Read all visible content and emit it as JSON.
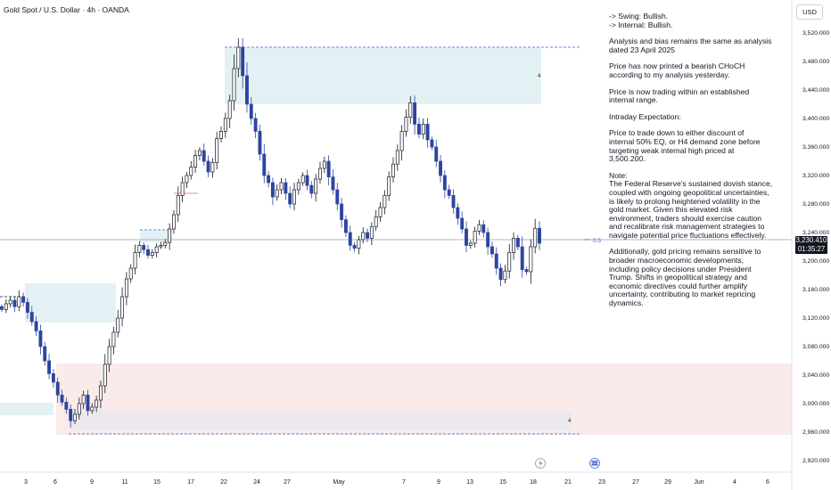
{
  "header": {
    "symbol": "Gold Spot / U.S. Dollar · 4h · OANDA"
  },
  "axis": {
    "currency": "USD",
    "price_ticks": [
      "3,520.000",
      "3,480.000",
      "3,440.000",
      "3,400.000",
      "3,360.000",
      "3,320.000",
      "3,280.000",
      "3,240.000",
      "3,200.000",
      "3,160.000",
      "3,120.000",
      "3,080.000",
      "3,040.000",
      "3,000.000",
      "2,960.000",
      "2,920.000"
    ],
    "date_ticks": [
      "3",
      "6",
      "9",
      "11",
      "15",
      "17",
      "22",
      "24",
      "27",
      "May",
      "7",
      "9",
      "13",
      "15",
      "18",
      "21",
      "23",
      "27",
      "29",
      "Jun",
      "4",
      "6"
    ]
  },
  "current_price": {
    "value": "3,230.410",
    "countdown": "01:35:27"
  },
  "fib_label": "0.5",
  "zone_labels": [
    "4",
    "4"
  ],
  "notes": [
    "-> Swing:  Bullish.",
    "-> Internal:  Bullish.",
    "",
    "Analysis and bias remains the same as analysis",
    "dated 23 April 2025",
    "",
    "Price has now printed a bearish CHoCH",
    "according to my analysis yesterday.",
    "",
    "Price is now trading within an established",
    "internal range.",
    "",
    "Intraday Expectation:",
    "",
    "Price to trade down to either discount of",
    "internal 50% EQ, or H4 demand zone before",
    "targeting weak internal high priced at",
    "3,500.200.",
    "",
    "Note:",
    "The Federal Reserve's sustained dovish stance,",
    "coupled with ongoing geopolitical uncertainties,",
    "is likely to prolong heightened volatility in the",
    "gold market. Given this elevated risk",
    "environment, traders should exercise caution",
    "and recalibrate risk management strategies to",
    "navigate potential price fluctuations effectively.",
    "",
    "Additionally, gold pricing remains sensitive to",
    "broader macroeconomic developments,",
    "including policy decisions under President",
    "Trump. Shifts in geopolitical strategy and",
    "economic directives could further amplify",
    "uncertainty, contributing to market repricing",
    "dynamics."
  ],
  "colors": {
    "up_candle": "#131722",
    "down_candle": "#2c45a0",
    "supply_zone": "#e4f1f4",
    "demand_zone": "#fbeaea",
    "demand_overlap": "#ebe9ee",
    "dashed_line": "#3d5fd8",
    "price_line": "#9aa0aa"
  },
  "chart_data": {
    "type": "candlestick",
    "timeframe": "4h",
    "x_unit": "session index from left edge",
    "ylim": [
      2905,
      3540
    ],
    "key_levels": {
      "weak_internal_high": 3500.2,
      "swing_low": 2956,
      "fib_0.5": 3230
    },
    "supply_zone": {
      "top": 3500,
      "bottom": 3417
    },
    "demand_zone": {
      "top": 3057,
      "bottom": 2956
    },
    "closes": [
      3132,
      3140,
      3145,
      3136,
      3150,
      3142,
      3128,
      3115,
      3102,
      3080,
      3060,
      3042,
      3030,
      3012,
      3002,
      2992,
      2976,
      2985,
      3000,
      3012,
      2990,
      2995,
      3005,
      3025,
      3055,
      3080,
      3100,
      3120,
      3150,
      3175,
      3190,
      3212,
      3222,
      3216,
      3208,
      3212,
      3220,
      3222,
      3226,
      3245,
      3265,
      3292,
      3310,
      3320,
      3332,
      3348,
      3355,
      3340,
      3325,
      3338,
      3372,
      3382,
      3400,
      3425,
      3470,
      3500,
      3460,
      3420,
      3400,
      3382,
      3350,
      3320,
      3310,
      3290,
      3300,
      3310,
      3295,
      3280,
      3300,
      3310,
      3320,
      3306,
      3295,
      3315,
      3330,
      3340,
      3318,
      3300,
      3280,
      3258,
      3240,
      3222,
      3218,
      3230,
      3240,
      3232,
      3248,
      3262,
      3275,
      3292,
      3318,
      3336,
      3355,
      3382,
      3402,
      3422,
      3392,
      3378,
      3392,
      3370,
      3360,
      3340,
      3320,
      3300,
      3292,
      3275,
      3260,
      3245,
      3222,
      3225,
      3242,
      3251,
      3240,
      3220,
      3210,
      3190,
      3174,
      3186,
      3212,
      3232,
      3220,
      3188,
      3185,
      3220,
      3246,
      3225
    ]
  }
}
